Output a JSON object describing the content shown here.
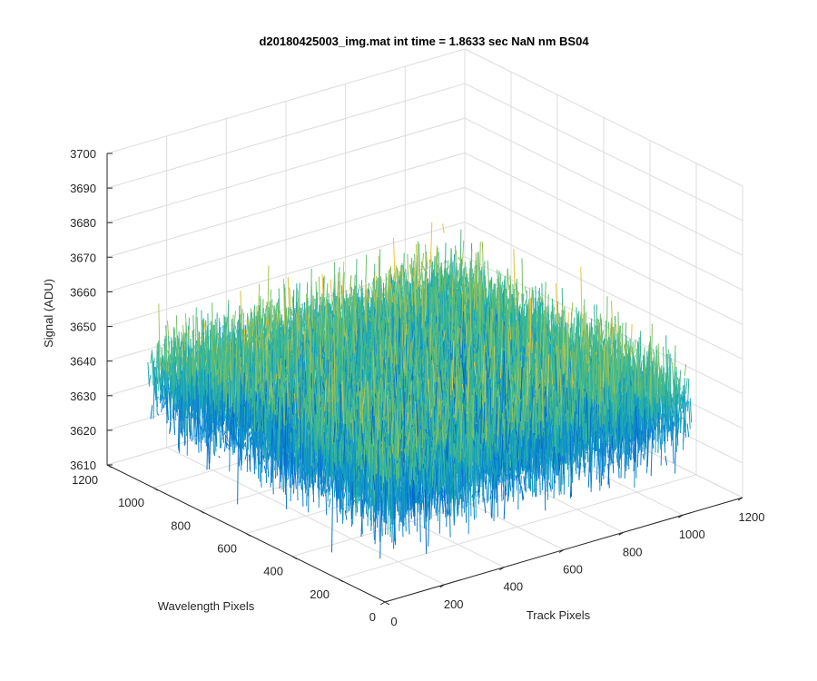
{
  "chart_data": {
    "type": "surface3d",
    "title": "d20180425003_img.mat int time = 1.8633 sec  NaN nm BS04",
    "xlabel": "Track Pixels",
    "ylabel": "Wavelength Pixels",
    "zlabel": "Signal (ADU)",
    "xlim": [
      0,
      1200
    ],
    "ylim": [
      0,
      1200
    ],
    "zlim": [
      3610,
      3700
    ],
    "x_ticks": [
      "0",
      "200",
      "400",
      "600",
      "800",
      "1000",
      "1200"
    ],
    "y_ticks": [
      "0",
      "200",
      "400",
      "600",
      "800",
      "1000",
      "1200"
    ],
    "z_ticks": [
      "3610",
      "3620",
      "3630",
      "3640",
      "3650",
      "3660",
      "3670",
      "3680",
      "3690",
      "3700"
    ],
    "grid": true,
    "colormap": "parula",
    "data_extent": {
      "x": [
        0,
        1024
      ],
      "y": [
        0,
        1024
      ]
    },
    "signal": {
      "mean": 3641,
      "std": 7,
      "min": 3615,
      "max": 3680
    },
    "colors": {
      "low": "#0072bd",
      "mid": "#35b779",
      "high": "#e8c23a"
    }
  }
}
